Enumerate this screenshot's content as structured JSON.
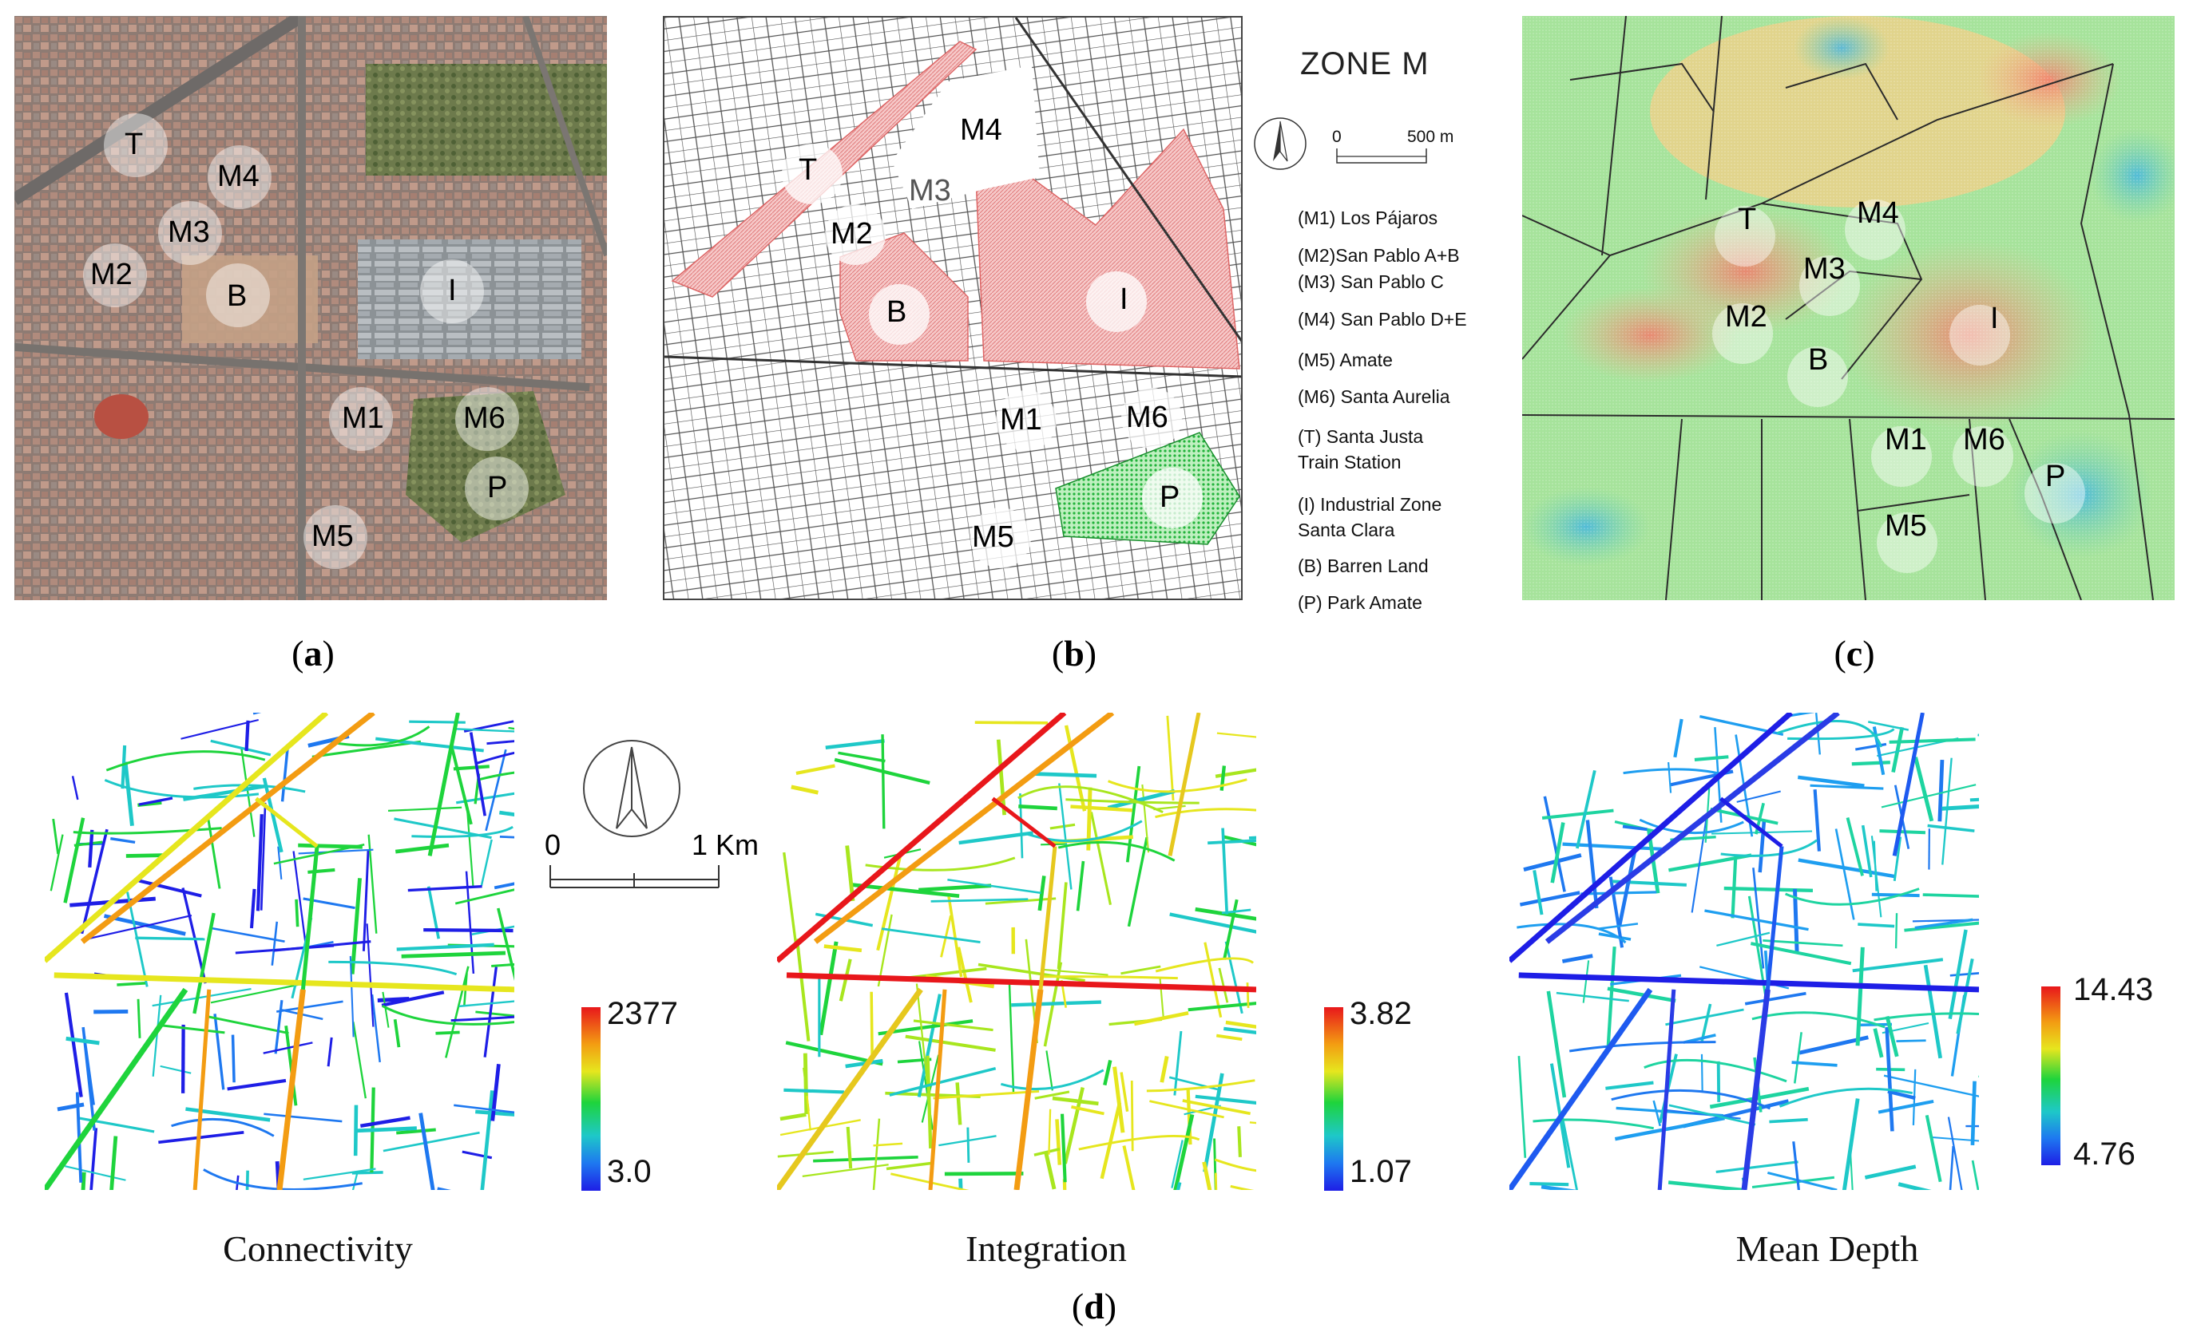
{
  "panel_labels": {
    "a": "a",
    "b": "b",
    "c": "c",
    "d": "d"
  },
  "zone_labels": [
    "T",
    "M4",
    "M3",
    "M2",
    "B",
    "I",
    "M1",
    "M6",
    "P",
    "M5"
  ],
  "zone_m": {
    "title": "ZONE M",
    "scale_start": "0",
    "scale_end": "500 m",
    "legend": [
      "(M1) Los Pájaros",
      "(M2)San Pablo A+B",
      "(M3) San Pablo C",
      "(M4) San Pablo D+E",
      "(M5) Amate",
      "(M6) Santa Aurelia",
      "(T) Santa Justa",
      "Train Station",
      "(I) Industrial Zone",
      "Santa Clara",
      "(B) Barren Land",
      "(P) Park Amate"
    ]
  },
  "scale_km": {
    "start": "0",
    "end": "1 Km"
  },
  "metrics": [
    {
      "name": "Connectivity",
      "max": "2377",
      "min": "3.0"
    },
    {
      "name": "Integration",
      "max": "3.82",
      "min": "1.07"
    },
    {
      "name": "Mean Depth",
      "max": "14.43",
      "min": "4.76"
    }
  ],
  "colors": {
    "hot": "#e8171b",
    "mid": "#1ed43c",
    "cold": "#1e1ee6",
    "zone_red": "#f2b8b8",
    "zone_green": "#1fbf3a"
  }
}
